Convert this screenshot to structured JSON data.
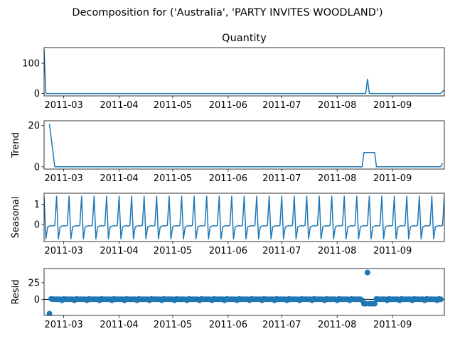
{
  "figure": {
    "suptitle": "Decomposition for ('Australia', 'PARTY INVITES WOODLAND')"
  },
  "chart_data": [
    {
      "type": "line",
      "title": "Quantity",
      "ylabel": "",
      "x_range": [
        "2011-02-18",
        "2011-09-30"
      ],
      "ylim": [
        -8,
        152
      ],
      "yticks": [
        0,
        100
      ],
      "x_ticks": [
        "2011-03",
        "2011-04",
        "2011-05",
        "2011-06",
        "2011-07",
        "2011-08",
        "2011-09"
      ],
      "x_tick_dates": [
        "2011-03-01",
        "2011-04-01",
        "2011-05-01",
        "2011-06-01",
        "2011-07-01",
        "2011-08-01",
        "2011-09-01"
      ],
      "series": [
        {
          "color": "#1f77b4",
          "points": [
            [
              "2011-02-18",
              145
            ],
            [
              "2011-02-19",
              0
            ],
            [
              "2011-08-17",
              0
            ],
            [
              "2011-08-18",
              48
            ],
            [
              "2011-08-19",
              0
            ],
            [
              "2011-09-28",
              0
            ],
            [
              "2011-09-30",
              12
            ]
          ]
        }
      ]
    },
    {
      "type": "line",
      "title": "",
      "ylabel": "Trend",
      "x_range": [
        "2011-02-18",
        "2011-09-30"
      ],
      "ylim": [
        -1.1,
        22.3
      ],
      "yticks": [
        0,
        20
      ],
      "x_ticks": [
        "2011-03",
        "2011-04",
        "2011-05",
        "2011-06",
        "2011-07",
        "2011-08",
        "2011-09"
      ],
      "x_tick_dates": [
        "2011-03-01",
        "2011-04-01",
        "2011-05-01",
        "2011-06-01",
        "2011-07-01",
        "2011-08-01",
        "2011-09-01"
      ],
      "series": [
        {
          "color": "#1f77b4",
          "points": [
            [
              "2011-02-21",
              20.7
            ],
            [
              "2011-02-24",
              0
            ],
            [
              "2011-08-15",
              0
            ],
            [
              "2011-08-16",
              6.9
            ],
            [
              "2011-08-22",
              6.9
            ],
            [
              "2011-08-23",
              0
            ],
            [
              "2011-09-28",
              0
            ],
            [
              "2011-09-29",
              1.7
            ]
          ]
        }
      ]
    },
    {
      "type": "line",
      "title": "",
      "ylabel": "Seasonal",
      "x_range": [
        "2011-02-18",
        "2011-09-30"
      ],
      "ylim": [
        -0.85,
        1.55
      ],
      "yticks": [
        0,
        1
      ],
      "x_ticks": [
        "2011-03",
        "2011-04",
        "2011-05",
        "2011-06",
        "2011-07",
        "2011-08",
        "2011-09"
      ],
      "x_tick_dates": [
        "2011-03-01",
        "2011-04-01",
        "2011-05-01",
        "2011-06-01",
        "2011-07-01",
        "2011-08-01",
        "2011-09-01"
      ],
      "series": [
        {
          "color": "#1f77b4",
          "start": "2011-02-18",
          "end": "2011-09-30",
          "pattern_7day": [
            1.4,
            -0.72,
            -0.12,
            -0.08,
            -0.06,
            -0.08,
            -0.05
          ]
        }
      ]
    },
    {
      "type": "scatter",
      "title": "",
      "ylabel": "Resid",
      "x_range": [
        "2011-02-18",
        "2011-09-30"
      ],
      "ylim": [
        -24,
        46
      ],
      "yticks": [
        0,
        25
      ],
      "zero_line": true,
      "x_ticks": [
        "2011-03",
        "2011-04",
        "2011-05",
        "2011-06",
        "2011-07",
        "2011-08",
        "2011-09"
      ],
      "x_tick_dates": [
        "2011-03-01",
        "2011-04-01",
        "2011-05-01",
        "2011-06-01",
        "2011-07-01",
        "2011-08-01",
        "2011-09-01"
      ],
      "series": [
        {
          "color": "#1f77b4",
          "start": "2011-02-21",
          "end": "2011-09-28",
          "baseline_7day": [
            -1.4,
            0.7,
            0.1,
            0.1,
            0.1,
            0.1,
            0.1
          ],
          "exceptions": [
            [
              "2011-02-21",
              -21.5
            ],
            [
              "2011-08-16",
              -6.5
            ],
            [
              "2011-08-17",
              -6.5
            ],
            [
              "2011-08-18",
              40
            ],
            [
              "2011-08-19",
              -6.5
            ],
            [
              "2011-08-20",
              -6.5
            ],
            [
              "2011-08-21",
              -6.5
            ],
            [
              "2011-08-22",
              -6.5
            ]
          ]
        }
      ]
    }
  ]
}
